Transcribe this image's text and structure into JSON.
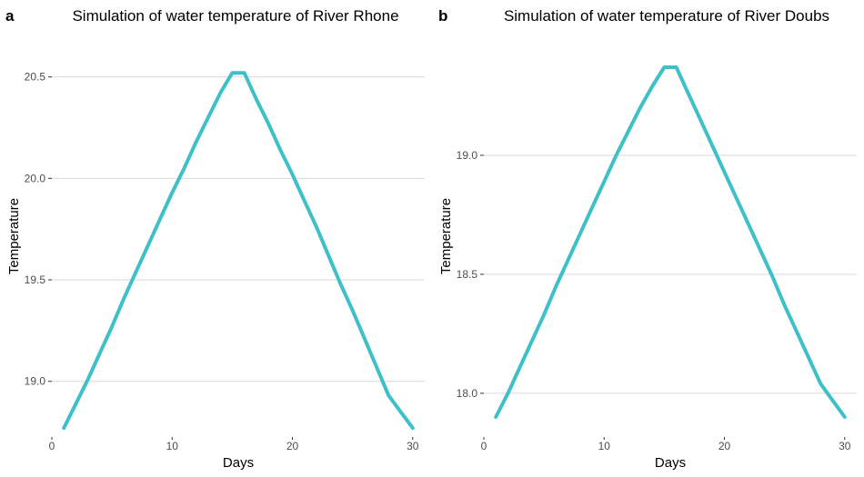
{
  "chart_data": [
    {
      "type": "line",
      "panel_tag": "a",
      "title": "Simulation of water temperature of River Rhone",
      "xlabel": "Days",
      "ylabel": "Temperature",
      "xlim": [
        0,
        31
      ],
      "ylim": [
        18.73,
        20.7
      ],
      "xticks": [
        0,
        10,
        20,
        30
      ],
      "xtick_labels": [
        "0",
        "10",
        "20",
        "30"
      ],
      "yticks": [
        19.0,
        19.5,
        20.0,
        20.5
      ],
      "ytick_labels": [
        "19.0",
        "19.5",
        "20.0",
        "20.5"
      ],
      "grid": "horizontal major",
      "legend": "none",
      "color": "#3ec0c9",
      "series": [
        {
          "x": [
            1,
            2,
            3,
            4,
            5,
            6,
            7,
            8,
            9,
            10,
            11,
            12,
            13,
            14,
            15,
            16,
            17,
            18,
            19,
            20,
            21,
            22,
            23,
            24,
            25,
            26,
            27,
            28,
            29,
            30
          ],
          "values": [
            18.77,
            18.89,
            19.01,
            19.14,
            19.27,
            19.41,
            19.54,
            19.67,
            19.8,
            19.93,
            20.05,
            20.18,
            20.3,
            20.42,
            20.52,
            20.52,
            20.39,
            20.27,
            20.14,
            20.02,
            19.89,
            19.76,
            19.62,
            19.48,
            19.35,
            19.21,
            19.07,
            18.93,
            18.85,
            18.77
          ]
        }
      ]
    },
    {
      "type": "line",
      "panel_tag": "b",
      "title": "Simulation of water temperature of River Doubs",
      "xlabel": "Days",
      "ylabel": "Temperature",
      "xlim": [
        0,
        31
      ],
      "ylim": [
        17.82,
        19.5
      ],
      "xticks": [
        0,
        10,
        20,
        30
      ],
      "xtick_labels": [
        "0",
        "10",
        "20",
        "30"
      ],
      "yticks": [
        18.0,
        18.5,
        19.0
      ],
      "ytick_labels": [
        "18.0",
        "18.5",
        "19.0"
      ],
      "grid": "horizontal major",
      "legend": "none",
      "color": "#3ec0c9",
      "series": [
        {
          "x": [
            1,
            2,
            3,
            4,
            5,
            6,
            7,
            8,
            9,
            10,
            11,
            12,
            13,
            14,
            15,
            16,
            17,
            18,
            19,
            20,
            21,
            22,
            23,
            24,
            25,
            26,
            27,
            28,
            29,
            30
          ],
          "values": [
            17.9,
            18.0,
            18.11,
            18.22,
            18.33,
            18.45,
            18.56,
            18.67,
            18.78,
            18.89,
            19.0,
            19.1,
            19.2,
            19.29,
            19.37,
            19.37,
            19.26,
            19.15,
            19.04,
            18.93,
            18.82,
            18.71,
            18.6,
            18.49,
            18.37,
            18.26,
            18.15,
            18.04,
            17.97,
            17.9
          ]
        }
      ]
    }
  ]
}
